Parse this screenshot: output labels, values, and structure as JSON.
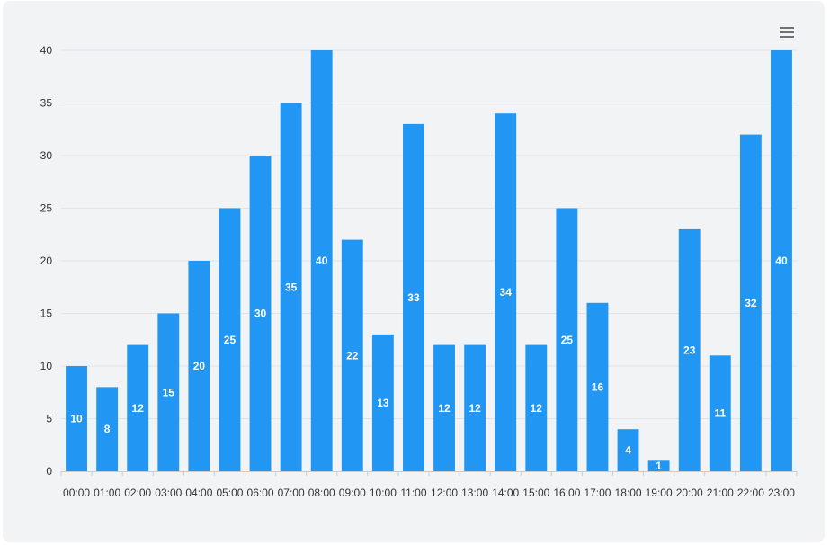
{
  "chart_data": {
    "type": "bar",
    "categories": [
      "00:00",
      "01:00",
      "02:00",
      "03:00",
      "04:00",
      "05:00",
      "06:00",
      "07:00",
      "08:00",
      "09:00",
      "10:00",
      "11:00",
      "12:00",
      "13:00",
      "14:00",
      "15:00",
      "16:00",
      "17:00",
      "18:00",
      "19:00",
      "20:00",
      "21:00",
      "22:00",
      "23:00"
    ],
    "values": [
      10,
      8,
      12,
      15,
      20,
      25,
      30,
      35,
      40,
      22,
      13,
      33,
      12,
      12,
      34,
      12,
      25,
      16,
      4,
      1,
      23,
      11,
      32,
      40
    ],
    "yticks": [
      0,
      5,
      10,
      15,
      20,
      25,
      30,
      35,
      40
    ],
    "ylim": [
      0,
      40
    ],
    "title": "",
    "xlabel": "",
    "ylabel": "",
    "grid": true,
    "data_labels": true,
    "bar_color": "#2196f3",
    "grid_color": "#e0e3e8",
    "axis_color": "#cccccc"
  },
  "toolbar": {
    "menu_icon": "hamburger-menu-icon"
  }
}
